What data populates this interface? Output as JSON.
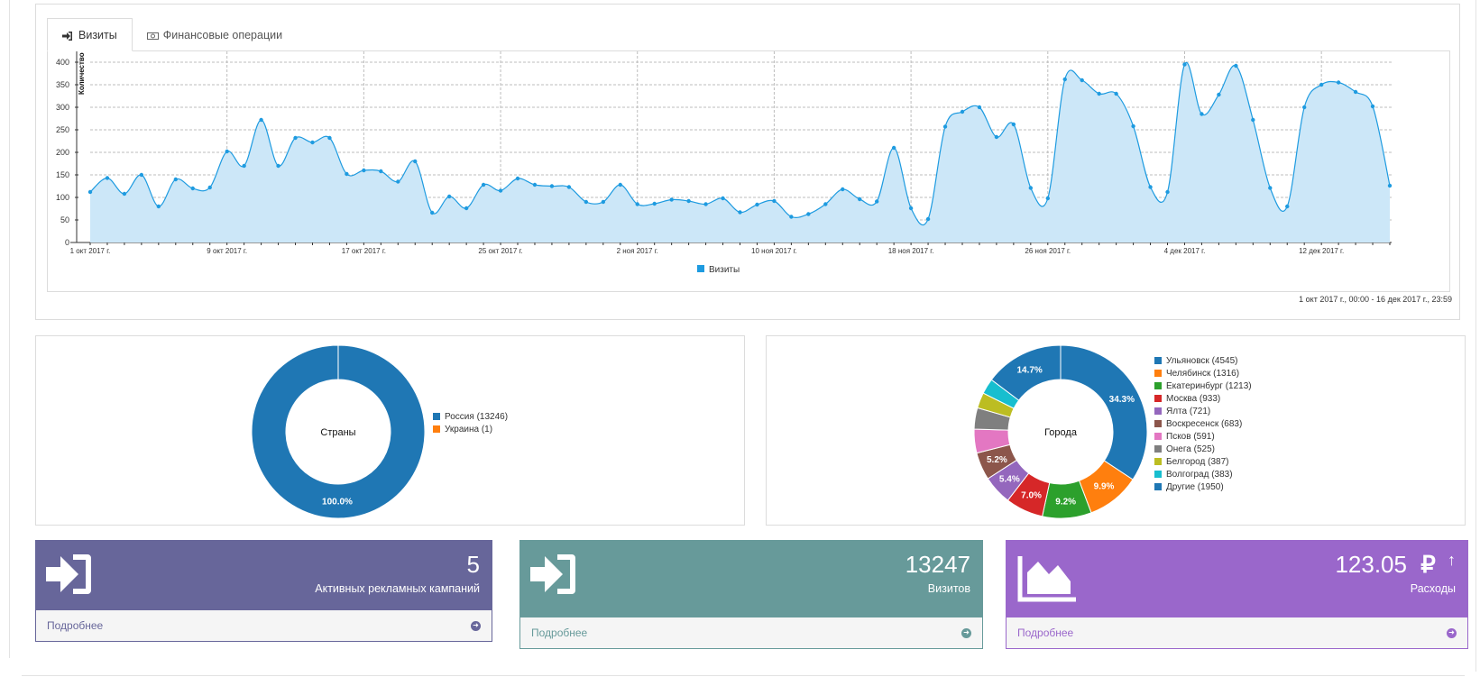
{
  "tabs": [
    {
      "label": "Визиты",
      "icon": "sign-in-icon",
      "active": true
    },
    {
      "label": "Финансовые операции",
      "icon": "money-icon",
      "active": false
    }
  ],
  "visits_chart": {
    "ylabel": "Количество",
    "legend": "Визиты",
    "period": "1 окт 2017 г., 00:00 - 16 дек 2017 г., 23:59",
    "color": "#1e9be0",
    "fill": "#cce7f8"
  },
  "chart_data": [
    {
      "type": "area",
      "ylabel": "Количество",
      "ylim": [
        0,
        400
      ],
      "yticks": [
        0,
        50,
        100,
        150,
        200,
        250,
        300,
        350,
        400
      ],
      "grid": true,
      "legend_position": "bottom",
      "x_tick_labels": [
        "1 окт 2017 г.",
        "9 окт 2017 г.",
        "17 окт 2017 г.",
        "25 окт 2017 г.",
        "2 ноя 2017 г.",
        "10 ноя 2017 г.",
        "18 ноя 2017 г.",
        "26 ноя 2017 г.",
        "4 дек 2017 г.",
        "12 дек 2017 г."
      ],
      "series": [
        {
          "name": "Визиты",
          "values": [
            112,
            143,
            108,
            150,
            80,
            140,
            120,
            122,
            202,
            170,
            272,
            170,
            232,
            222,
            232,
            152,
            160,
            158,
            135,
            180,
            66,
            102,
            76,
            128,
            115,
            142,
            128,
            125,
            123,
            90,
            90,
            128,
            85,
            86,
            95,
            92,
            85,
            98,
            67,
            84,
            92,
            57,
            63,
            85,
            118,
            96,
            91,
            210,
            76,
            52,
            257,
            290,
            300,
            234,
            262,
            121,
            98,
            362,
            360,
            330,
            330,
            258,
            123,
            112,
            395,
            285,
            328,
            392,
            272,
            121,
            80,
            300,
            350,
            355,
            334,
            302,
            126
          ]
        }
      ]
    },
    {
      "type": "pie",
      "title": "Страны",
      "categories": [
        "Россия (13246)",
        "Украина (1)"
      ],
      "values": [
        13246,
        1
      ],
      "slice_labels": [
        "100.0%",
        ""
      ],
      "colors": [
        "#1f77b4",
        "#ff7f0e"
      ],
      "legend_position": "right"
    },
    {
      "type": "pie",
      "title": "Города",
      "categories": [
        "Ульяновск (4545)",
        "Челябинск (1316)",
        "Екатеринбург (1213)",
        "Москва (933)",
        "Ялта (721)",
        "Воскресенск (683)",
        "Псков (591)",
        "Онега (525)",
        "Белгород (387)",
        "Волгоград (383)",
        "Другие (1950)"
      ],
      "values": [
        4545,
        1316,
        1213,
        933,
        721,
        683,
        591,
        525,
        387,
        383,
        1950
      ],
      "slice_labels": [
        "34.3%",
        "9.9%",
        "9.2%",
        "7.0%",
        "5.4%",
        "5.2%",
        "",
        "",
        "",
        "",
        "14.7%"
      ],
      "colors": [
        "#1f77b4",
        "#ff7f0e",
        "#2ca02c",
        "#d62728",
        "#9467bd",
        "#8c564b",
        "#e377c2",
        "#7f7f7f",
        "#bcbd22",
        "#17becf",
        "#1f77b4"
      ],
      "legend_position": "right"
    }
  ],
  "cards": [
    {
      "value": "5",
      "label": "Активных рекламных кампаний",
      "footer": "Подробнее",
      "icon": "sign-in-icon",
      "color": "#67669a",
      "foot_color": "#67669a"
    },
    {
      "value": "13247",
      "label": "Визитов",
      "footer": "Подробнее",
      "icon": "sign-in-icon",
      "color": "#679a9a",
      "foot_color": "#679a9a"
    },
    {
      "value": "123.05",
      "currency": "₽",
      "trend": "↑",
      "label": "Расходы",
      "footer": "Подробнее",
      "icon": "area-chart-icon",
      "color": "#9a67cb",
      "foot_color": "#9a67cb"
    }
  ]
}
